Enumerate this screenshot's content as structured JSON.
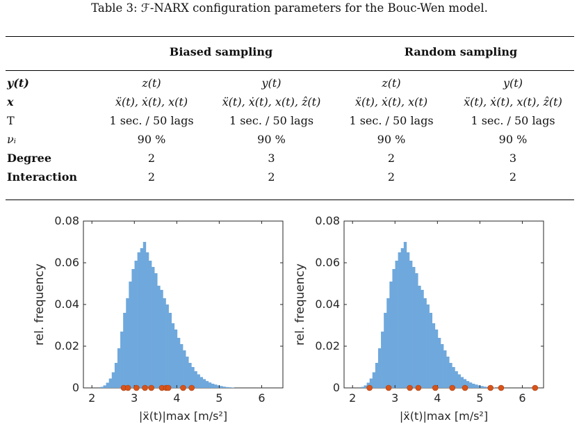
{
  "caption": "Table 3: ℱ-NARX configuration parameters for the Bouc-Wen model.",
  "table": {
    "groups": [
      "Biased sampling",
      "Random sampling"
    ],
    "rows": [
      {
        "label": "y(t)",
        "cells": [
          "z(t)",
          "y(t)",
          "z(t)",
          "y(t)"
        ]
      },
      {
        "label": "x",
        "cells": [
          "ẍ(t), ẋ(t), x(t)",
          "ẍ(t), ẋ(t), x(t), ẑ(t)",
          "ẍ(t), ẋ(t), x(t)",
          "ẍ(t), ẋ(t), x(t), ẑ(t)"
        ]
      },
      {
        "label": "T",
        "cells": [
          "1 sec. / 50 lags",
          "1 sec. / 50 lags",
          "1 sec. / 50 lags",
          "1 sec. / 50 lags"
        ]
      },
      {
        "label": "νᵢ",
        "cells": [
          "90 %",
          "90 %",
          "90 %",
          "90 %"
        ]
      },
      {
        "label": "Degree",
        "cells": [
          "2",
          "3",
          "2",
          "3"
        ]
      },
      {
        "label": "Interaction",
        "cells": [
          "2",
          "2",
          "2",
          "2"
        ]
      }
    ]
  },
  "chart_data": [
    {
      "type": "bar",
      "ylabel": "rel. frequency",
      "xlabel": "|ẍ(t)|max  [m/s²]",
      "xlim": [
        1.8,
        6.5
      ],
      "ylim": [
        0,
        0.08
      ],
      "xticks": [
        "2",
        "3",
        "4",
        "5",
        "6"
      ],
      "yticks": [
        "0",
        "0.02",
        "0.04",
        "0.06",
        "0.08"
      ],
      "bar_color": "#6FA8DC",
      "marker_color": "#D95319",
      "bin_start": 2.2,
      "bin_width": 0.067,
      "values": [
        0.0005,
        0.0012,
        0.0025,
        0.0045,
        0.0075,
        0.012,
        0.019,
        0.027,
        0.036,
        0.043,
        0.051,
        0.057,
        0.061,
        0.065,
        0.067,
        0.07,
        0.065,
        0.061,
        0.058,
        0.055,
        0.049,
        0.047,
        0.043,
        0.04,
        0.036,
        0.031,
        0.028,
        0.024,
        0.021,
        0.018,
        0.015,
        0.012,
        0.01,
        0.008,
        0.0065,
        0.0052,
        0.0042,
        0.0033,
        0.0026,
        0.002,
        0.0016,
        0.0012,
        0.0009,
        0.0006,
        0.0004,
        0.0003,
        0.0002
      ],
      "samples": [
        2.75,
        2.85,
        3.05,
        3.25,
        3.4,
        3.65,
        3.75,
        3.8,
        4.15,
        4.35
      ]
    },
    {
      "type": "bar",
      "ylabel": "rel. frequency",
      "xlabel": "|ẍ(t)|max  [m/s²]",
      "xlim": [
        1.8,
        6.5
      ],
      "ylim": [
        0,
        0.08
      ],
      "xticks": [
        "2",
        "3",
        "4",
        "5",
        "6"
      ],
      "yticks": [
        "0",
        "0.02",
        "0.04",
        "0.06",
        "0.08"
      ],
      "bar_color": "#6FA8DC",
      "marker_color": "#D95319",
      "bin_start": 2.2,
      "bin_width": 0.067,
      "values": [
        0.0005,
        0.0012,
        0.0025,
        0.0045,
        0.0075,
        0.012,
        0.019,
        0.027,
        0.036,
        0.043,
        0.051,
        0.057,
        0.061,
        0.065,
        0.067,
        0.07,
        0.065,
        0.061,
        0.058,
        0.055,
        0.049,
        0.047,
        0.043,
        0.04,
        0.036,
        0.031,
        0.028,
        0.024,
        0.021,
        0.018,
        0.015,
        0.012,
        0.01,
        0.008,
        0.0065,
        0.0052,
        0.0042,
        0.0033,
        0.0026,
        0.002,
        0.0016,
        0.0012,
        0.0009,
        0.0006,
        0.0004,
        0.0003,
        0.0002
      ],
      "samples": [
        2.4,
        2.85,
        3.35,
        3.55,
        3.95,
        4.35,
        4.65,
        5.25,
        5.5,
        6.3
      ]
    }
  ]
}
